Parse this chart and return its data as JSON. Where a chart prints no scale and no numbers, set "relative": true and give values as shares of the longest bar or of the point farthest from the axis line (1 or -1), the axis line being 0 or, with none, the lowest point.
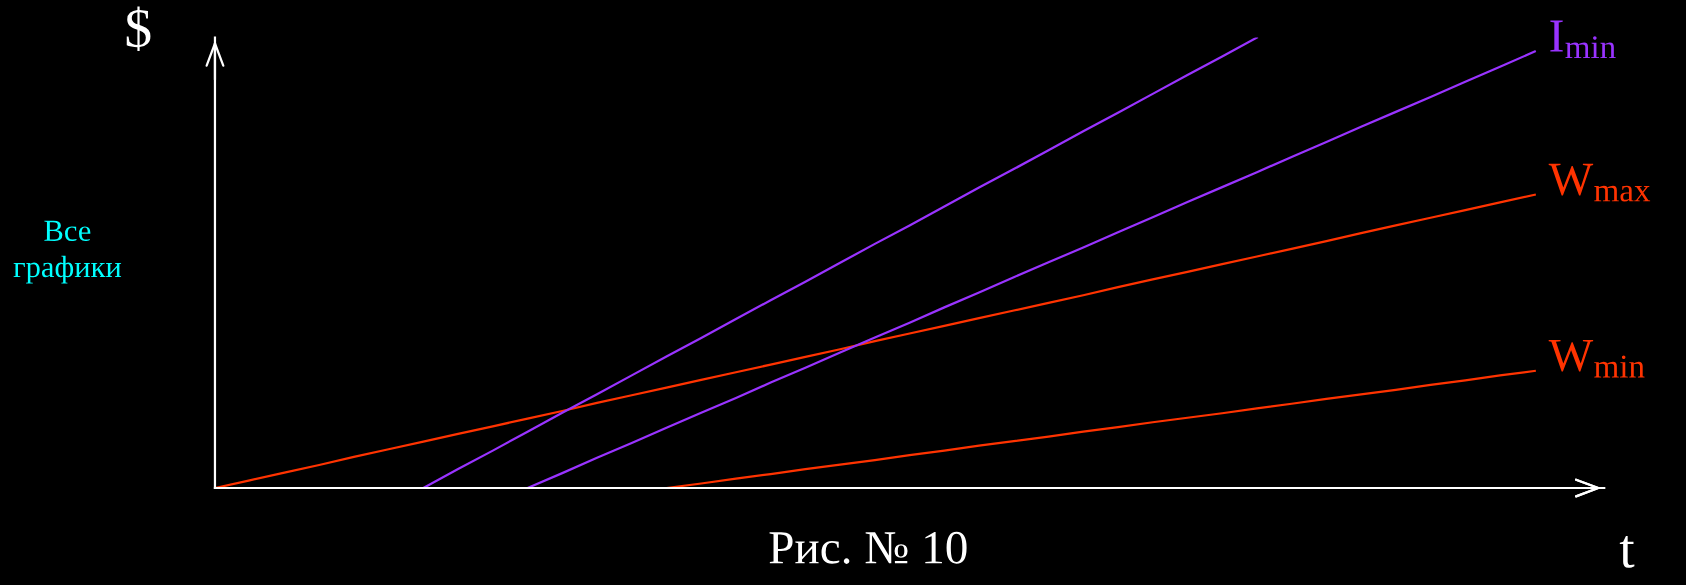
{
  "chart_data": {
    "type": "line",
    "relative": true,
    "xlabel": "t",
    "ylabel": "$",
    "marker": "none",
    "line_style": "solid",
    "categories": [
      null,
      null,
      null,
      null,
      null,
      null,
      null,
      null,
      null,
      null,
      null,
      null,
      null,
      null,
      null,
      null,
      null,
      null,
      null,
      null,
      null,
      null,
      null,
      null,
      null,
      null,
      null,
      null,
      null,
      null,
      null,
      null,
      null,
      null,
      null,
      null,
      null,
      null,
      null,
      null
    ],
    "annotations": [
      "Рис. № 10",
      "Все графики"
    ],
    "series": [
      {
        "name": "W$_{max}$",
        "color": "#ff3300",
        "values": [
          0,
          0.017,
          0.034,
          0.051,
          0.069,
          0.086,
          0.103,
          0.12,
          0.137,
          0.154,
          0.171,
          0.189,
          0.206,
          0.223,
          0.24,
          0.257,
          0.274,
          0.291,
          0.308,
          0.326,
          0.343,
          0.36,
          0.377,
          0.394,
          0.411,
          0.428,
          0.446,
          0.463,
          0.48,
          0.497,
          0.514,
          0.531,
          0.548,
          0.566,
          0.583,
          0.6,
          0.617,
          0.634,
          0.651,
          null
        ]
      },
      {
        "name": "W$_{min}$",
        "color": "#ff3300",
        "values": [
          null,
          null,
          null,
          null,
          null,
          null,
          null,
          null,
          null,
          null,
          null,
          null,
          null,
          0,
          0.01,
          0.021,
          0.031,
          0.042,
          0.052,
          0.062,
          0.073,
          0.083,
          0.094,
          0.104,
          0.114,
          0.125,
          0.135,
          0.146,
          0.156,
          0.166,
          0.177,
          0.187,
          0.198,
          0.208,
          0.218,
          0.229,
          0.239,
          0.25,
          0.26,
          null
        ]
      },
      {
        "name": "I$_{min}$",
        "color": "#9933ff",
        "values": [
          null,
          null,
          null,
          null,
          null,
          null,
          null,
          null,
          null,
          0,
          0.033,
          0.067,
          0.1,
          0.134,
          0.167,
          0.2,
          0.234,
          0.267,
          0.301,
          0.334,
          0.367,
          0.401,
          0.434,
          0.468,
          0.501,
          0.534,
          0.568,
          0.601,
          0.635,
          0.668,
          0.701,
          0.735,
          0.768,
          0.802,
          0.835,
          0.868,
          0.902,
          0.935,
          0.969,
          null
        ]
      },
      {
        "color": "#9933ff",
        "values": [
          null,
          null,
          null,
          null,
          null,
          null,
          0,
          0.042,
          0.083,
          0.125,
          0.167,
          0.208,
          0.25,
          0.292,
          0.333,
          0.375,
          0.417,
          0.458,
          0.5,
          0.542,
          0.583,
          0.625,
          0.667,
          0.708,
          0.75,
          0.792,
          0.833,
          0.875,
          0.917,
          0.958,
          1,
          null,
          null,
          null,
          null,
          null,
          null,
          null,
          null,
          null
        ]
      }
    ]
  }
}
